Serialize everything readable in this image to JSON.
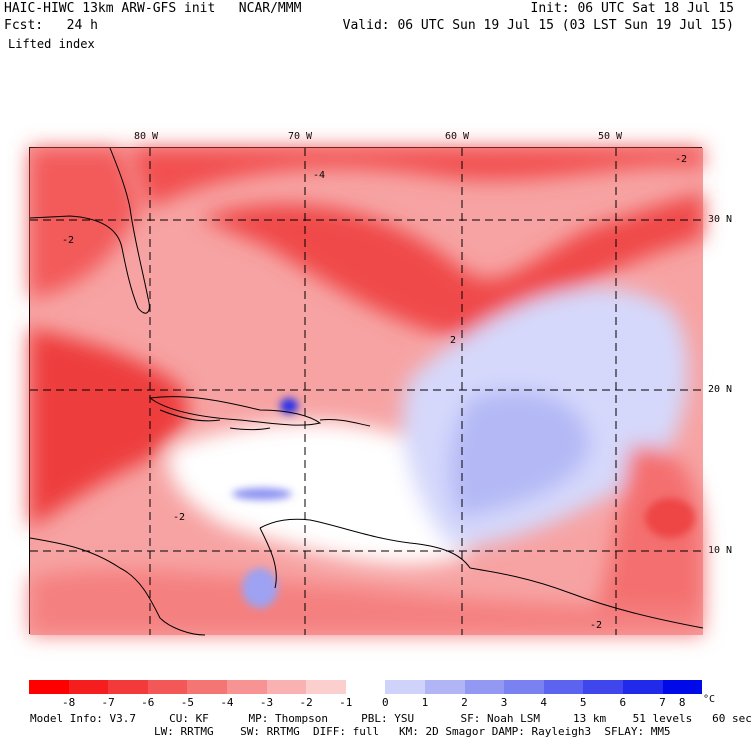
{
  "header": {
    "model_line": "HAIC-HIWC 13km ARW-GFS init   NCAR/MMM",
    "init_line": "Init: 06 UTC Sat 18 Jul 15",
    "fcst_line": "Fcst:   24 h",
    "valid_line": "Valid: 06 UTC Sun 19 Jul 15 (03 LST Sun 19 Jul 15)",
    "field_name": "Lifted index"
  },
  "map": {
    "lon_labels": [
      "80 W",
      "70 W",
      "60 W",
      "50 W"
    ],
    "lat_labels": [
      "30 N",
      "20 N",
      "10 N"
    ],
    "contour_labels": [
      "-2",
      "-4",
      "2"
    ]
  },
  "colorbar": {
    "colors": [
      "#ff0000",
      "#f51d1d",
      "#f33939",
      "#f35757",
      "#f57575",
      "#f79393",
      "#f9b1b1",
      "#fccfcf",
      "#ffffff",
      "#cfd3f9",
      "#b1b5f5",
      "#9399f3",
      "#7a81f1",
      "#5c63ee",
      "#3f46ec",
      "#2129ea",
      "#0009e8"
    ],
    "tick_labels": [
      "-8",
      "-7",
      "-6",
      "-5",
      "-4",
      "-3",
      "-2",
      "-1",
      "0",
      "1",
      "2",
      "3",
      "4",
      "5",
      "6",
      "7",
      "8"
    ],
    "unit": "°C"
  },
  "footer": {
    "line1": "Model Info: V3.7     CU: KF      MP: Thompson     PBL: YSU       SF: Noah LSM     13 km    51 levels   60 sec",
    "line2": "LW: RRTMG    SW: RRTMG  DIFF: full   KM: 2D Smagor DAMP: Rayleigh3  SFLAY: MM5"
  }
}
